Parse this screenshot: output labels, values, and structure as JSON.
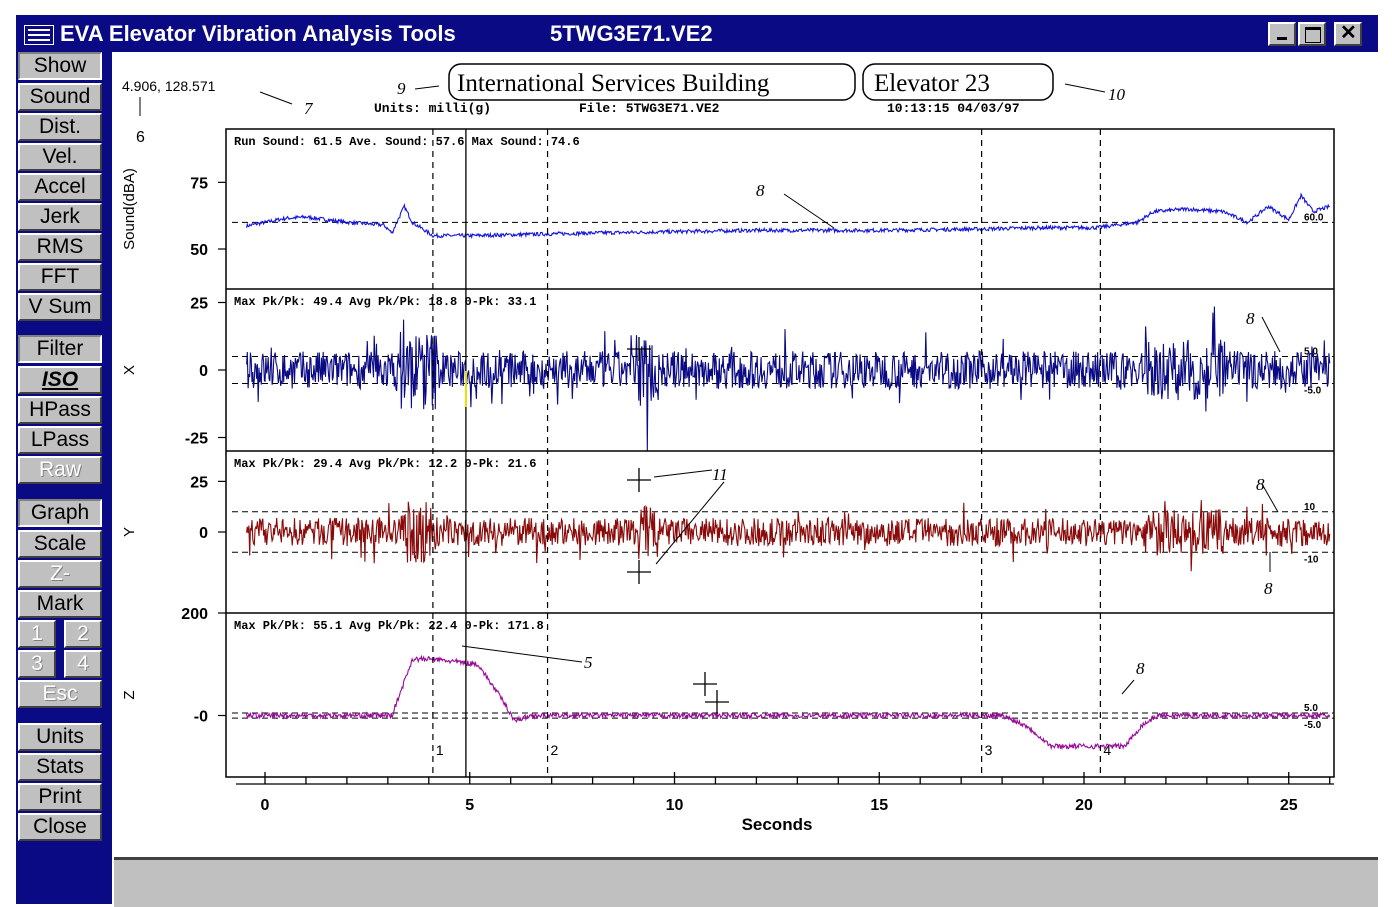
{
  "window": {
    "title": "EVA Elevator Vibration Analysis Tools",
    "file_title": "5TWG3E71.VE2",
    "controls": [
      "minimize",
      "maximize",
      "close"
    ]
  },
  "sidebar": {
    "show_header": "Show",
    "show_buttons": [
      "Sound",
      "Dist.",
      "Vel.",
      "Accel",
      "Jerk",
      "RMS",
      "FFT",
      "V Sum"
    ],
    "filter_header": "Filter",
    "filter_buttons": [
      "ISO",
      "HPass",
      "LPass",
      "Raw"
    ],
    "graph_header": "Graph",
    "graph_buttons": [
      "Scale",
      "Z-",
      "Mark"
    ],
    "mark_buttons": [
      "1",
      "2",
      "3",
      "4"
    ],
    "esc": "Esc",
    "bottom_buttons": [
      "Units",
      "Stats",
      "Print",
      "Close"
    ]
  },
  "header": {
    "cursor_readout": "4.906, 128.571",
    "units": "Units: milli(g)",
    "file": "File: 5TWG3E71.VE2",
    "datetime": "10:13:15 04/03/97",
    "building": "International Services Building",
    "elevator": "Elevator  23"
  },
  "annotations": {
    "n6": "6",
    "n7": "7",
    "n8": "8",
    "n9": "9",
    "n10": "10",
    "n11": "11",
    "n5": "5"
  },
  "colors": {
    "sound": "#1515e0",
    "x": "#0a0a84",
    "y": "#8a0a0a",
    "z": "#990a99",
    "chrome_blue": "#0a0a84",
    "chrome_gray": "#c0c0c0"
  },
  "chart_data": {
    "type": "line",
    "xlabel": "Seconds",
    "xlim": [
      -0.6,
      26
    ],
    "xticks": [
      0,
      5,
      10,
      15,
      20,
      25
    ],
    "markers": [
      {
        "label": "1",
        "x": 4.1
      },
      {
        "label": "2",
        "x": 6.9
      },
      {
        "label": "3",
        "x": 17.5
      },
      {
        "label": "4",
        "x": 20.4
      }
    ],
    "cursor_x": 4.906,
    "panels": [
      {
        "ylabel": "Sound(dBA)",
        "stats": "Run Sound: 61.5 Ave. Sound: 57.6 Max Sound: 74.6",
        "ylim": [
          35,
          95
        ],
        "yticks": [
          {
            "v": 75,
            "t": "75"
          },
          {
            "v": 50,
            "t": "50"
          }
        ],
        "ref_lines": [
          {
            "v": 60,
            "t": "60.0"
          }
        ],
        "keypoints": [
          [
            0,
            60
          ],
          [
            0.5,
            61.5
          ],
          [
            1,
            62
          ],
          [
            2,
            60
          ],
          [
            2.9,
            59
          ],
          [
            3.1,
            56
          ],
          [
            3.4,
            66
          ],
          [
            3.6,
            60
          ],
          [
            4.1,
            55
          ],
          [
            5,
            55
          ],
          [
            8,
            56
          ],
          [
            12,
            57
          ],
          [
            15,
            57
          ],
          [
            17.5,
            57.5
          ],
          [
            19,
            58
          ],
          [
            20.3,
            58
          ],
          [
            21.3,
            60
          ],
          [
            21.7,
            64
          ],
          [
            22.5,
            65
          ],
          [
            23.4,
            64
          ],
          [
            24,
            60
          ],
          [
            24.5,
            66
          ],
          [
            25,
            61
          ],
          [
            25.3,
            70
          ],
          [
            25.6,
            64
          ],
          [
            26,
            66
          ]
        ],
        "noise": 0.7
      },
      {
        "ylabel": "X",
        "stats": "Max Pk/Pk: 49.4  Avg Pk/Pk: 18.8  0-Pk: 33.1",
        "ylim": [
          -30,
          30
        ],
        "yticks": [
          {
            "v": 25,
            "t": "25"
          },
          {
            "v": 0,
            "t": "0"
          },
          {
            "v": -25,
            "t": "-25"
          }
        ],
        "ref_lines": [
          {
            "v": 5,
            "t": "5.0"
          },
          {
            "v": -5,
            "t": "-5.0"
          }
        ],
        "amplitude": 7
      },
      {
        "ylabel": "Y",
        "stats": "Max Pk/Pk: 29.4  Avg Pk/Pk: 12.2  0-Pk: 21.6",
        "ylim": [
          -40,
          40
        ],
        "yticks": [
          {
            "v": 25,
            "t": "25"
          },
          {
            "v": 0,
            "t": "0"
          }
        ],
        "ref_lines": [
          {
            "v": 10,
            "t": "10"
          },
          {
            "v": -10,
            "t": "-10"
          }
        ],
        "amplitude": 7
      },
      {
        "ylabel": "Z",
        "stats": "Max Pk/Pk: 55.1  Avg Pk/Pk: 22.4  0-Pk: 171.8",
        "ylim": [
          -120,
          200
        ],
        "yticks": [
          {
            "v": 200,
            "t": "200"
          },
          {
            "v": 0,
            "t": "-0"
          }
        ],
        "ref_lines": [
          {
            "v": 5,
            "t": "5.0"
          },
          {
            "v": -5,
            "t": "-5.0"
          }
        ],
        "keypoints": [
          [
            0,
            0
          ],
          [
            3.1,
            0
          ],
          [
            3.6,
            110
          ],
          [
            4.1,
            110
          ],
          [
            5.2,
            100
          ],
          [
            5.8,
            30
          ],
          [
            6.1,
            -10
          ],
          [
            6.5,
            0
          ],
          [
            18,
            0
          ],
          [
            18.6,
            -20
          ],
          [
            19.2,
            -60
          ],
          [
            21,
            -60
          ],
          [
            21.4,
            -20
          ],
          [
            21.8,
            0
          ],
          [
            26,
            0
          ]
        ],
        "noise": 5
      }
    ]
  }
}
